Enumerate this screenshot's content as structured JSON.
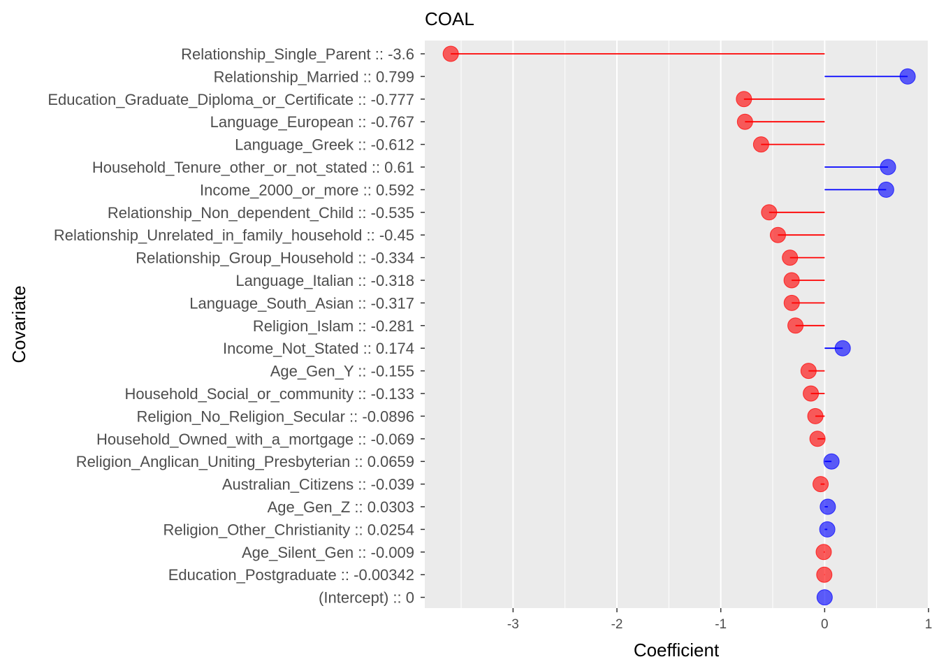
{
  "chart_data": {
    "type": "lollipop",
    "title": "COAL",
    "xlabel": "Coefficient",
    "ylabel": "Covariate",
    "xlim": [
      -3.85,
      1.0
    ],
    "xticks": [
      -3,
      -2,
      -1,
      0,
      1
    ],
    "xtick_labels": [
      "-3",
      "-2",
      "-1",
      "0",
      "1"
    ],
    "grid": true,
    "colors": {
      "positive": "#0000ff",
      "negative": "#ff0000",
      "panel": "#ebebeb",
      "grid": "#ffffff"
    },
    "items": [
      {
        "label": "Relationship_Single_Parent :: -3.6",
        "value": -3.6
      },
      {
        "label": "Relationship_Married :: 0.799",
        "value": 0.799
      },
      {
        "label": "Education_Graduate_Diploma_or_Certificate :: -0.777",
        "value": -0.777
      },
      {
        "label": "Language_European :: -0.767",
        "value": -0.767
      },
      {
        "label": "Language_Greek :: -0.612",
        "value": -0.612
      },
      {
        "label": "Household_Tenure_other_or_not_stated :: 0.61",
        "value": 0.61
      },
      {
        "label": "Income_2000_or_more :: 0.592",
        "value": 0.592
      },
      {
        "label": "Relationship_Non_dependent_Child :: -0.535",
        "value": -0.535
      },
      {
        "label": "Relationship_Unrelated_in_family_household :: -0.45",
        "value": -0.45
      },
      {
        "label": "Relationship_Group_Household :: -0.334",
        "value": -0.334
      },
      {
        "label": "Language_Italian :: -0.318",
        "value": -0.318
      },
      {
        "label": "Language_South_Asian :: -0.317",
        "value": -0.317
      },
      {
        "label": "Religion_Islam :: -0.281",
        "value": -0.281
      },
      {
        "label": "Income_Not_Stated :: 0.174",
        "value": 0.174
      },
      {
        "label": "Age_Gen_Y :: -0.155",
        "value": -0.155
      },
      {
        "label": "Household_Social_or_community :: -0.133",
        "value": -0.133
      },
      {
        "label": "Religion_No_Religion_Secular :: -0.0896",
        "value": -0.0896
      },
      {
        "label": "Household_Owned_with_a_mortgage :: -0.069",
        "value": -0.069
      },
      {
        "label": "Religion_Anglican_Uniting_Presbyterian :: 0.0659",
        "value": 0.0659
      },
      {
        "label": "Australian_Citizens :: -0.039",
        "value": -0.039
      },
      {
        "label": "Age_Gen_Z :: 0.0303",
        "value": 0.0303
      },
      {
        "label": "Religion_Other_Christianity :: 0.0254",
        "value": 0.0254
      },
      {
        "label": "Age_Silent_Gen :: -0.009",
        "value": -0.009
      },
      {
        "label": "Education_Postgraduate :: -0.00342",
        "value": -0.00342
      },
      {
        "label": "(Intercept) ::    0",
        "value": 0
      }
    ]
  }
}
